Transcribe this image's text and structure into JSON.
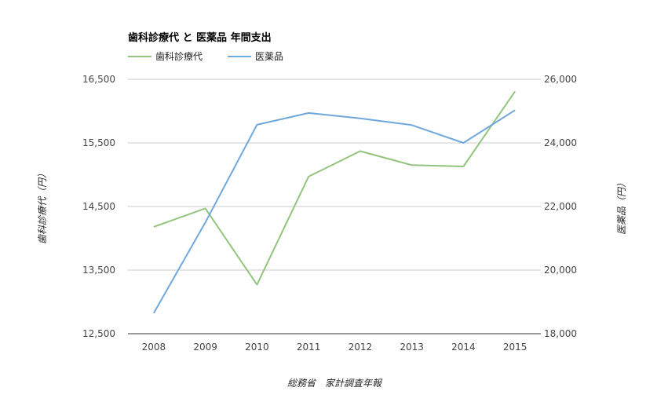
{
  "chart_data": {
    "type": "line",
    "title": "歯科診療代 と 医薬品 年間支出",
    "categories": [
      "2008",
      "2009",
      "2010",
      "2011",
      "2012",
      "2013",
      "2014",
      "2015"
    ],
    "series": [
      {
        "name": "歯科診療代",
        "axis": "left",
        "color": "#93c47d",
        "values": [
          14180,
          14470,
          13270,
          14970,
          15370,
          15150,
          15130,
          16310
        ]
      },
      {
        "name": "医薬品",
        "axis": "right",
        "color": "#6fa8dc",
        "values": [
          18650,
          21500,
          24570,
          24940,
          24770,
          24560,
          24000,
          25030
        ]
      }
    ],
    "y_left": {
      "label": "歯科診療代（円）",
      "ylim": [
        12500,
        16500
      ],
      "ticks": [
        12500,
        13500,
        14500,
        15500,
        16500
      ],
      "tick_labels": [
        "12,500",
        "13,500",
        "14,500",
        "15,500",
        "16,500"
      ]
    },
    "y_right": {
      "label": "医薬品（円）",
      "ylim": [
        18000,
        26000
      ],
      "ticks": [
        18000,
        20000,
        22000,
        24000,
        26000
      ],
      "tick_labels": [
        "18,000",
        "20,000",
        "22,000",
        "24,000",
        "26,000"
      ]
    },
    "grid": true,
    "legend_position": "top-left",
    "source": "総務省　家計調査年報"
  }
}
